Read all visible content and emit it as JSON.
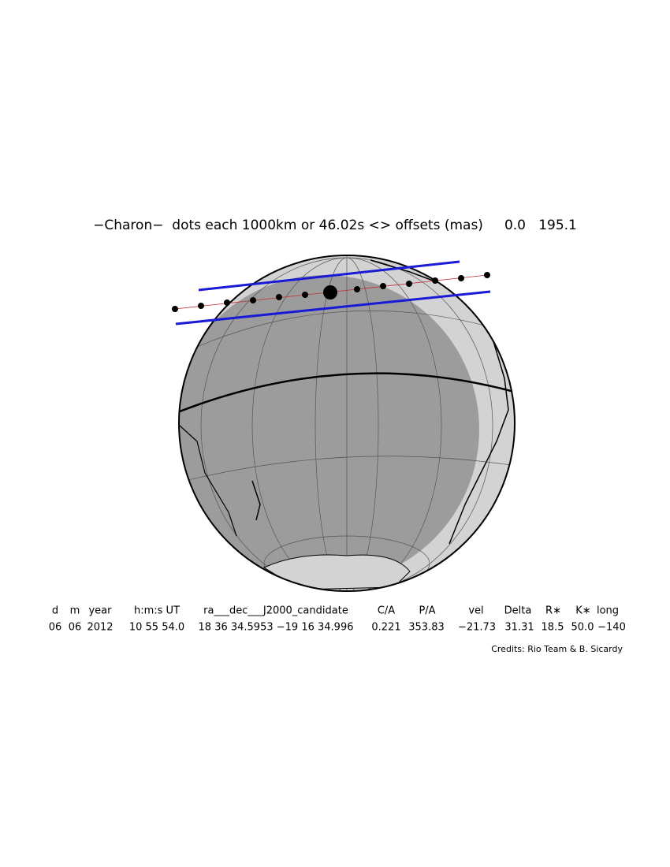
{
  "title": "−Charon−  dots each 1000km or 46.02s <> offsets (mas)     0.0   195.1",
  "table": {
    "header": [
      "d",
      "m",
      "year",
      "h:m:s UT",
      "ra___dec___J2000_candidate",
      "C/A",
      "P/A",
      "vel",
      "Delta",
      "R∗",
      "K∗",
      "long"
    ],
    "rows": [
      [
        "06",
        "06",
        "2012",
        "10 55 54.0",
        "18 36 34.5953 −19 16 34.996",
        "0.221",
        "353.83",
        "−21.73",
        "31.31",
        "18.5",
        "50.0",
        "−140"
      ]
    ]
  },
  "credits": "Credits: Rio Team & B. Sicardy"
}
